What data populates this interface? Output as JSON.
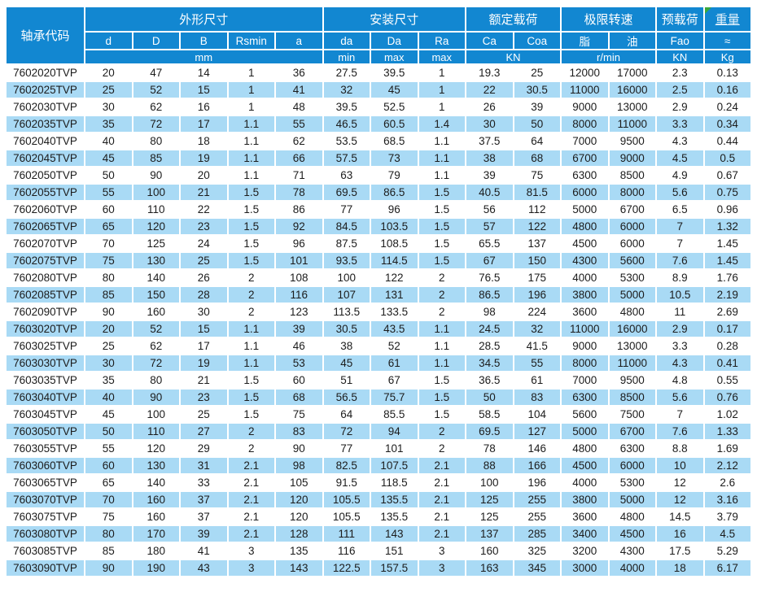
{
  "table": {
    "corner_header": "轴承代码",
    "groups": [
      {
        "label": "外形尺寸"
      },
      {
        "label": "安装尺寸"
      },
      {
        "label": "额定载荷"
      },
      {
        "label": "极限转速"
      },
      {
        "label": "预载荷"
      },
      {
        "label": "重量"
      }
    ],
    "columns": [
      "d",
      "D",
      "B",
      "Rsmin",
      "a",
      "da",
      "Da",
      "Ra",
      "Ca",
      "Coa",
      "脂",
      "油",
      "Fao",
      "≈"
    ],
    "units": [
      "mm",
      "min",
      "max",
      "max",
      "KN",
      "r/min",
      "KN",
      "Kg"
    ],
    "rows": [
      [
        "7602020TVP",
        "20",
        "47",
        "14",
        "1",
        "36",
        "27.5",
        "39.5",
        "1",
        "19.3",
        "25",
        "12000",
        "17000",
        "2.3",
        "0.13"
      ],
      [
        "7602025TVP",
        "25",
        "52",
        "15",
        "1",
        "41",
        "32",
        "45",
        "1",
        "22",
        "30.5",
        "11000",
        "16000",
        "2.5",
        "0.16"
      ],
      [
        "7602030TVP",
        "30",
        "62",
        "16",
        "1",
        "48",
        "39.5",
        "52.5",
        "1",
        "26",
        "39",
        "9000",
        "13000",
        "2.9",
        "0.24"
      ],
      [
        "7602035TVP",
        "35",
        "72",
        "17",
        "1.1",
        "55",
        "46.5",
        "60.5",
        "1.4",
        "30",
        "50",
        "8000",
        "11000",
        "3.3",
        "0.34"
      ],
      [
        "7602040TVP",
        "40",
        "80",
        "18",
        "1.1",
        "62",
        "53.5",
        "68.5",
        "1.1",
        "37.5",
        "64",
        "7000",
        "9500",
        "4.3",
        "0.44"
      ],
      [
        "7602045TVP",
        "45",
        "85",
        "19",
        "1.1",
        "66",
        "57.5",
        "73",
        "1.1",
        "38",
        "68",
        "6700",
        "9000",
        "4.5",
        "0.5"
      ],
      [
        "7602050TVP",
        "50",
        "90",
        "20",
        "1.1",
        "71",
        "63",
        "79",
        "1.1",
        "39",
        "75",
        "6300",
        "8500",
        "4.9",
        "0.67"
      ],
      [
        "7602055TVP",
        "55",
        "100",
        "21",
        "1.5",
        "78",
        "69.5",
        "86.5",
        "1.5",
        "40.5",
        "81.5",
        "6000",
        "8000",
        "5.6",
        "0.75"
      ],
      [
        "7602060TVP",
        "60",
        "110",
        "22",
        "1.5",
        "86",
        "77",
        "96",
        "1.5",
        "56",
        "112",
        "5000",
        "6700",
        "6.5",
        "0.96"
      ],
      [
        "7602065TVP",
        "65",
        "120",
        "23",
        "1.5",
        "92",
        "84.5",
        "103.5",
        "1.5",
        "57",
        "122",
        "4800",
        "6000",
        "7",
        "1.32"
      ],
      [
        "7602070TVP",
        "70",
        "125",
        "24",
        "1.5",
        "96",
        "87.5",
        "108.5",
        "1.5",
        "65.5",
        "137",
        "4500",
        "6000",
        "7",
        "1.45"
      ],
      [
        "7602075TVP",
        "75",
        "130",
        "25",
        "1.5",
        "101",
        "93.5",
        "114.5",
        "1.5",
        "67",
        "150",
        "4300",
        "5600",
        "7.6",
        "1.45"
      ],
      [
        "7602080TVP",
        "80",
        "140",
        "26",
        "2",
        "108",
        "100",
        "122",
        "2",
        "76.5",
        "175",
        "4000",
        "5300",
        "8.9",
        "1.76"
      ],
      [
        "7602085TVP",
        "85",
        "150",
        "28",
        "2",
        "116",
        "107",
        "131",
        "2",
        "86.5",
        "196",
        "3800",
        "5000",
        "10.5",
        "2.19"
      ],
      [
        "7602090TVP",
        "90",
        "160",
        "30",
        "2",
        "123",
        "113.5",
        "133.5",
        "2",
        "98",
        "224",
        "3600",
        "4800",
        "11",
        "2.69"
      ],
      [
        "7603020TVP",
        "20",
        "52",
        "15",
        "1.1",
        "39",
        "30.5",
        "43.5",
        "1.1",
        "24.5",
        "32",
        "11000",
        "16000",
        "2.9",
        "0.17"
      ],
      [
        "7603025TVP",
        "25",
        "62",
        "17",
        "1.1",
        "46",
        "38",
        "52",
        "1.1",
        "28.5",
        "41.5",
        "9000",
        "13000",
        "3.3",
        "0.28"
      ],
      [
        "7603030TVP",
        "30",
        "72",
        "19",
        "1.1",
        "53",
        "45",
        "61",
        "1.1",
        "34.5",
        "55",
        "8000",
        "11000",
        "4.3",
        "0.41"
      ],
      [
        "7603035TVP",
        "35",
        "80",
        "21",
        "1.5",
        "60",
        "51",
        "67",
        "1.5",
        "36.5",
        "61",
        "7000",
        "9500",
        "4.8",
        "0.55"
      ],
      [
        "7603040TVP",
        "40",
        "90",
        "23",
        "1.5",
        "68",
        "56.5",
        "75.7",
        "1.5",
        "50",
        "83",
        "6300",
        "8500",
        "5.6",
        "0.76"
      ],
      [
        "7603045TVP",
        "45",
        "100",
        "25",
        "1.5",
        "75",
        "64",
        "85.5",
        "1.5",
        "58.5",
        "104",
        "5600",
        "7500",
        "7",
        "1.02"
      ],
      [
        "7603050TVP",
        "50",
        "110",
        "27",
        "2",
        "83",
        "72",
        "94",
        "2",
        "69.5",
        "127",
        "5000",
        "6700",
        "7.6",
        "1.33"
      ],
      [
        "7603055TVP",
        "55",
        "120",
        "29",
        "2",
        "90",
        "77",
        "101",
        "2",
        "78",
        "146",
        "4800",
        "6300",
        "8.8",
        "1.69"
      ],
      [
        "7603060TVP",
        "60",
        "130",
        "31",
        "2.1",
        "98",
        "82.5",
        "107.5",
        "2.1",
        "88",
        "166",
        "4500",
        "6000",
        "10",
        "2.12"
      ],
      [
        "7603065TVP",
        "65",
        "140",
        "33",
        "2.1",
        "105",
        "91.5",
        "118.5",
        "2.1",
        "100",
        "196",
        "4000",
        "5300",
        "12",
        "2.6"
      ],
      [
        "7603070TVP",
        "70",
        "160",
        "37",
        "2.1",
        "120",
        "105.5",
        "135.5",
        "2.1",
        "125",
        "255",
        "3800",
        "5000",
        "12",
        "3.16"
      ],
      [
        "7603075TVP",
        "75",
        "160",
        "37",
        "2.1",
        "120",
        "105.5",
        "135.5",
        "2.1",
        "125",
        "255",
        "3600",
        "4800",
        "14.5",
        "3.79"
      ],
      [
        "7603080TVP",
        "80",
        "170",
        "39",
        "2.1",
        "128",
        "111",
        "143",
        "2.1",
        "137",
        "285",
        "3400",
        "4500",
        "16",
        "4.5"
      ],
      [
        "7603085TVP",
        "85",
        "180",
        "41",
        "3",
        "135",
        "116",
        "151",
        "3",
        "160",
        "325",
        "3200",
        "4300",
        "17.5",
        "5.29"
      ],
      [
        "7603090TVP",
        "90",
        "190",
        "43",
        "3",
        "143",
        "122.5",
        "157.5",
        "3",
        "163",
        "345",
        "3000",
        "4000",
        "18",
        "6.17"
      ]
    ]
  },
  "colors": {
    "header_bg": "#1287d1",
    "row_alt_bg": "#a9daf5",
    "grid": "#ffffff",
    "header_text": "#ffffff",
    "body_text": "#1c1c1c",
    "comment_marker": "#3aa83a"
  }
}
